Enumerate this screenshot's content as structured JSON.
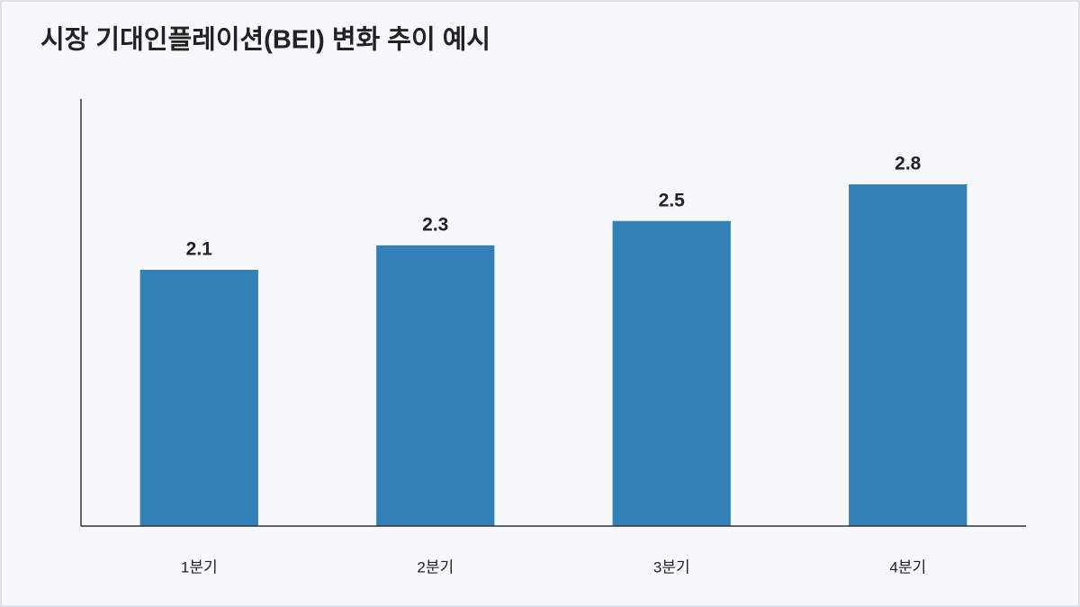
{
  "chart_data": {
    "type": "bar",
    "title": "시장 기대인플레이션(BEI) 변화 추이 예시",
    "categories": [
      "1분기",
      "2분기",
      "3분기",
      "4분기"
    ],
    "values": [
      2.1,
      2.3,
      2.5,
      2.8
    ],
    "color": "#3180b8",
    "ylim": [
      0,
      3.5
    ]
  }
}
